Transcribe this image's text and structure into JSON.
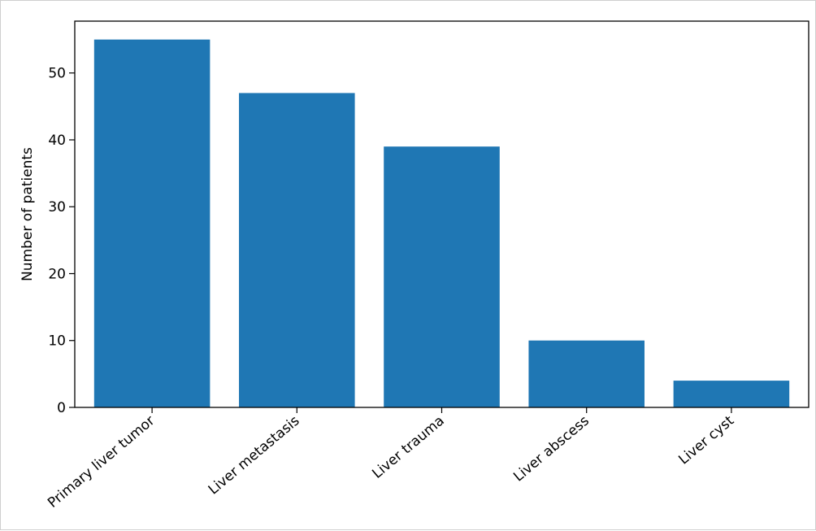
{
  "chart_data": {
    "type": "bar",
    "title": "",
    "xlabel": "",
    "ylabel": "Number of patients",
    "categories": [
      "Primary liver tumor",
      "Liver metastasis",
      "Liver trauma",
      "Liver abscess",
      "Liver cyst"
    ],
    "values": [
      55,
      47,
      39,
      10,
      4
    ],
    "ylim": [
      0,
      57.75
    ],
    "yticks": [
      0,
      10,
      20,
      30,
      40,
      50
    ],
    "bar_color": "#1f77b4",
    "grid": false,
    "legend": "none"
  }
}
